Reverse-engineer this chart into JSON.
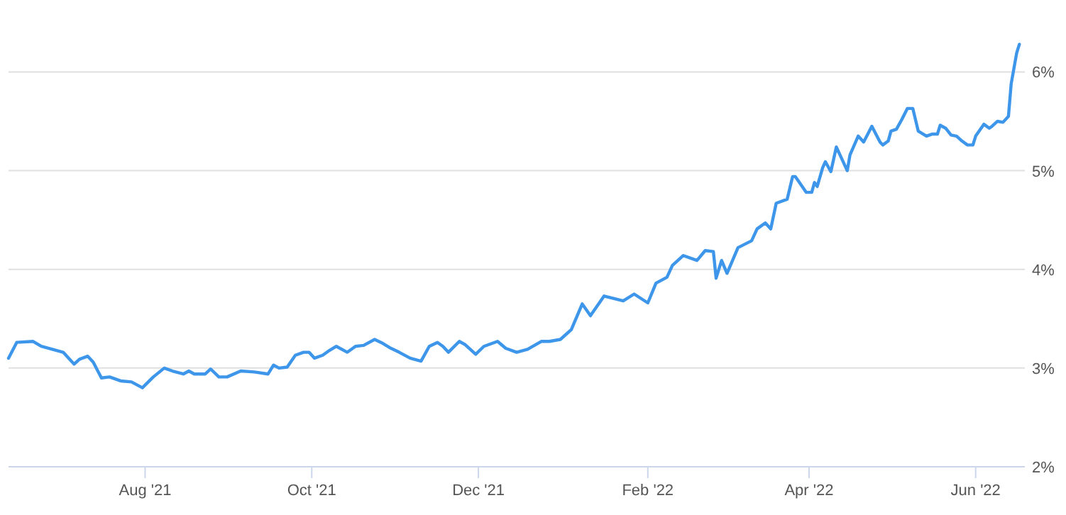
{
  "chart_data": {
    "type": "line",
    "x": [
      "2021-06-12",
      "2021-06-15",
      "2021-06-21",
      "2021-06-24",
      "2021-06-28",
      "2021-07-02",
      "2021-07-06",
      "2021-07-08",
      "2021-07-11",
      "2021-07-13",
      "2021-07-16",
      "2021-07-19",
      "2021-07-23",
      "2021-07-27",
      "2021-07-31",
      "2021-08-04",
      "2021-08-08",
      "2021-08-11",
      "2021-08-15",
      "2021-08-17",
      "2021-08-19",
      "2021-08-23",
      "2021-08-25",
      "2021-08-28",
      "2021-08-31",
      "2021-09-05",
      "2021-09-10",
      "2021-09-15",
      "2021-09-17",
      "2021-09-19",
      "2021-09-22",
      "2021-09-25",
      "2021-09-28",
      "2021-09-30",
      "2021-10-02",
      "2021-10-05",
      "2021-10-07",
      "2021-10-10",
      "2021-10-14",
      "2021-10-17",
      "2021-10-20",
      "2021-10-24",
      "2021-10-27",
      "2021-10-30",
      "2021-11-02",
      "2021-11-06",
      "2021-11-10",
      "2021-11-13",
      "2021-11-16",
      "2021-11-18",
      "2021-11-20",
      "2021-11-24",
      "2021-11-26",
      "2021-11-30",
      "2021-12-03",
      "2021-12-08",
      "2021-12-11",
      "2021-12-15",
      "2021-12-19",
      "2021-12-24",
      "2021-12-27",
      "2021-12-31",
      "2022-01-04",
      "2022-01-08",
      "2022-01-11",
      "2022-01-16",
      "2022-01-23",
      "2022-01-27",
      "2022-02-01",
      "2022-02-04",
      "2022-02-08",
      "2022-02-10",
      "2022-02-14",
      "2022-02-19",
      "2022-02-22",
      "2022-02-25",
      "2022-02-26",
      "2022-02-28",
      "2022-03-02",
      "2022-03-06",
      "2022-03-11",
      "2022-03-13",
      "2022-03-16",
      "2022-03-18",
      "2022-03-20",
      "2022-03-24",
      "2022-03-26",
      "2022-03-27",
      "2022-03-31",
      "2022-04-02",
      "2022-04-03",
      "2022-04-04",
      "2022-04-06",
      "2022-04-07",
      "2022-04-09",
      "2022-04-11",
      "2022-04-15",
      "2022-04-16",
      "2022-04-19",
      "2022-04-21",
      "2022-04-24",
      "2022-04-27",
      "2022-04-28",
      "2022-04-30",
      "2022-05-01",
      "2022-05-03",
      "2022-05-05",
      "2022-05-07",
      "2022-05-09",
      "2022-05-11",
      "2022-05-14",
      "2022-05-16",
      "2022-05-18",
      "2022-05-19",
      "2022-05-21",
      "2022-05-23",
      "2022-05-25",
      "2022-05-27",
      "2022-05-29",
      "2022-05-31",
      "2022-06-01",
      "2022-06-04",
      "2022-06-06",
      "2022-06-07",
      "2022-06-09",
      "2022-06-11",
      "2022-06-13",
      "2022-06-14",
      "2022-06-16",
      "2022-06-17"
    ],
    "series": [
      {
        "color": "#3d96ea",
        "values": [
          3.1,
          3.26,
          3.27,
          3.22,
          3.19,
          3.16,
          3.04,
          3.09,
          3.12,
          3.06,
          2.9,
          2.91,
          2.87,
          2.86,
          2.8,
          2.91,
          3.0,
          2.97,
          2.94,
          2.97,
          2.94,
          2.94,
          2.99,
          2.91,
          2.91,
          2.97,
          2.96,
          2.94,
          3.03,
          3.0,
          3.01,
          3.13,
          3.16,
          3.16,
          3.1,
          3.13,
          3.17,
          3.22,
          3.16,
          3.22,
          3.23,
          3.29,
          3.25,
          3.2,
          3.16,
          3.1,
          3.07,
          3.22,
          3.26,
          3.22,
          3.16,
          3.27,
          3.24,
          3.14,
          3.22,
          3.27,
          3.2,
          3.16,
          3.19,
          3.27,
          3.27,
          3.29,
          3.39,
          3.65,
          3.53,
          3.73,
          3.68,
          3.75,
          3.66,
          3.86,
          3.92,
          4.04,
          4.14,
          4.09,
          4.19,
          4.18,
          3.91,
          4.09,
          3.96,
          4.22,
          4.29,
          4.41,
          4.47,
          4.41,
          4.67,
          4.71,
          4.94,
          4.94,
          4.78,
          4.78,
          4.88,
          4.84,
          5.03,
          5.09,
          4.99,
          5.24,
          5.0,
          5.16,
          5.35,
          5.29,
          5.45,
          5.29,
          5.26,
          5.3,
          5.4,
          5.42,
          5.52,
          5.63,
          5.63,
          5.4,
          5.35,
          5.37,
          5.37,
          5.46,
          5.43,
          5.36,
          5.35,
          5.3,
          5.26,
          5.26,
          5.35,
          5.47,
          5.43,
          5.45,
          5.5,
          5.49,
          5.55,
          5.88,
          6.19,
          6.28
        ]
      }
    ],
    "xlim": [
      "2021-06-12",
      "2022-06-19"
    ],
    "xticks": [
      {
        "value": "2021-08-01",
        "label": "Aug '21"
      },
      {
        "value": "2021-10-01",
        "label": "Oct '21"
      },
      {
        "value": "2021-12-01",
        "label": "Dec '21"
      },
      {
        "value": "2022-02-01",
        "label": "Feb '22"
      },
      {
        "value": "2022-04-01",
        "label": "Apr '22"
      },
      {
        "value": "2022-06-01",
        "label": "Jun '22"
      }
    ],
    "ylim": [
      2,
      6.7
    ],
    "yticks": [
      {
        "value": 2,
        "label": "2%"
      },
      {
        "value": 3,
        "label": "3%"
      },
      {
        "value": 4,
        "label": "4%"
      },
      {
        "value": 5,
        "label": "5%"
      },
      {
        "value": 6,
        "label": "6%"
      }
    ],
    "grid": "y",
    "marker": "none",
    "line_style": "solid"
  }
}
